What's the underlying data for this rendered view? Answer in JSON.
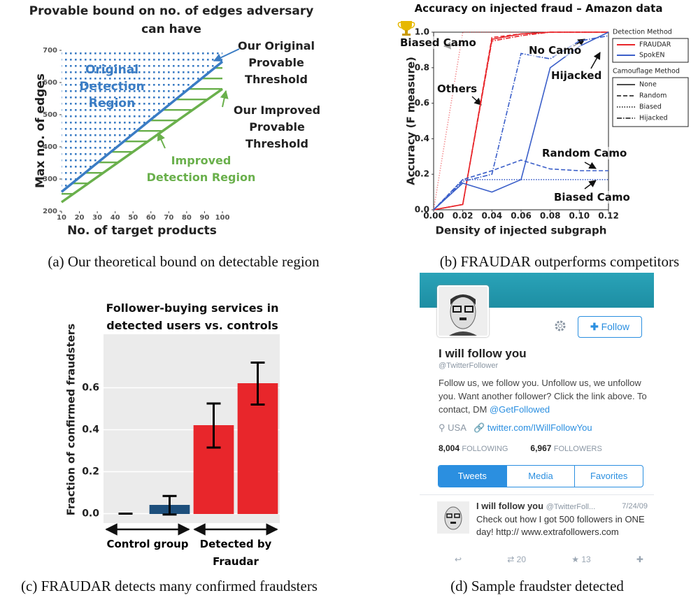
{
  "chart_data": [
    {
      "type": "line",
      "title": "Provable bound on no. of edges adversary can have",
      "xlabel": "No. of target products",
      "ylabel": "Max no. of edges",
      "xlim": [
        10,
        100
      ],
      "ylim": [
        200,
        700
      ],
      "xticks": [
        10,
        20,
        30,
        40,
        50,
        60,
        70,
        80,
        90,
        100
      ],
      "yticks": [
        200,
        300,
        400,
        500,
        600,
        700
      ],
      "x": [
        10,
        100
      ],
      "series": [
        {
          "color": "#3a7cc4",
          "values": [
            260,
            665
          ]
        },
        {
          "color": "#6ab04c",
          "values": [
            228,
            580
          ]
        }
      ],
      "annotations": [
        {
          "text": "Original Detection Region",
          "color": "#3a7cc4"
        },
        {
          "text": "Our Original Provable Threshold",
          "color": "#222222"
        },
        {
          "text": "Our Improved Provable Threshold",
          "color": "#222222"
        },
        {
          "text": "Improved Detection Region",
          "color": "#6ab04c"
        }
      ],
      "grid": false
    },
    {
      "type": "line",
      "title": "Accuracy on injected fraud – Amazon data",
      "xlabel": "Density of injected subgraph",
      "ylabel": "Accuracy (F measure)",
      "xlim": [
        0,
        0.12
      ],
      "ylim": [
        0,
        1.0
      ],
      "xticks": [
        {
          "value": 0,
          "label": "0.00"
        },
        0.02,
        0.04,
        0.06,
        0.08,
        {
          "value": 0.1,
          "label": "0.10"
        },
        0.12
      ],
      "yticks": [
        {
          "value": 0,
          "label": "0.0"
        },
        0.2,
        0.4,
        0.6,
        0.8,
        {
          "value": 1,
          "label": "1.0"
        }
      ],
      "x": [
        0,
        0.02,
        0.04,
        0.06,
        0.08,
        0.1,
        0.12
      ],
      "legend": {
        "methods_title": "Detection Method",
        "methods": [
          {
            "name": "FRAUDAR",
            "color": "#e8262b"
          },
          {
            "name": "SpokEN",
            "color": "#3b5fc9"
          }
        ],
        "camouflages_title": "Camouflage Method",
        "camouflages": [
          {
            "name": "None",
            "dash": "none"
          },
          {
            "name": "Random",
            "dash": "6 3"
          },
          {
            "name": "Biased",
            "dash": "1.5 2"
          },
          {
            "name": "Hijacked",
            "dash": "7 2 1.5 2"
          }
        ]
      },
      "series": [
        {
          "method": "FRAUDAR",
          "camouflage": "None",
          "values": [
            0,
            0.03,
            0.96,
            0.99,
            1,
            1,
            1
          ]
        },
        {
          "method": "FRAUDAR",
          "camouflage": "Random",
          "values": [
            0,
            0.03,
            0.97,
            0.99,
            1,
            1,
            1
          ]
        },
        {
          "method": "FRAUDAR",
          "camouflage": "Biased",
          "values": [
            0,
            1,
            1,
            1,
            1,
            1,
            1
          ]
        },
        {
          "method": "FRAUDAR",
          "camouflage": "Hijacked",
          "values": [
            0,
            0.03,
            0.95,
            0.98,
            1,
            1,
            1
          ]
        },
        {
          "method": "SpokEN",
          "camouflage": "None",
          "values": [
            0,
            0.15,
            0.1,
            0.17,
            0.8,
            0.92,
            1
          ]
        },
        {
          "method": "SpokEN",
          "camouflage": "Random",
          "values": [
            0,
            0.17,
            0.22,
            0.28,
            0.23,
            0.22,
            0.22
          ]
        },
        {
          "method": "SpokEN",
          "camouflage": "Biased",
          "values": [
            0,
            0.17,
            0.17,
            0.17,
            0.17,
            0.17,
            0.17
          ]
        },
        {
          "method": "SpokEN",
          "camouflage": "Hijacked",
          "values": [
            0,
            0.16,
            0.2,
            0.88,
            0.85,
            0.95,
            0.98
          ]
        }
      ],
      "annotations": [
        {
          "text": "Biased Camo",
          "color": "#111111"
        },
        {
          "text": "No Camo",
          "color": "#111111"
        },
        {
          "text": "Others",
          "color": "#111111"
        },
        {
          "text": "Hijacked",
          "color": "#111111"
        },
        {
          "text": "Random Camo",
          "color": "#111111"
        },
        {
          "text": "Biased Camo",
          "color": "#111111"
        }
      ],
      "grid": false
    },
    {
      "type": "bar",
      "title": "Follower-buying services in detected users vs. controls",
      "ylabel": "Fraction of confirmed fraudsters",
      "ylim": [
        -0.045,
        0.855
      ],
      "yticks": [
        {
          "value": 0,
          "label": "0.0"
        },
        0.2,
        0.4,
        0.6
      ],
      "groups": [
        {
          "label": "Control group",
          "color": "#1d4f7c",
          "values": [
            0,
            0.04
          ],
          "errors": [
            0,
            0.044
          ]
        },
        {
          "label": "Detected by Fraudar",
          "color": "#e8262b",
          "values": [
            0.42,
            0.62
          ],
          "errors": [
            0.105,
            0.1
          ]
        }
      ],
      "grid": true
    }
  ],
  "profile": {
    "follow_button": "Follow",
    "name": "I will follow you",
    "handle": "@TwitterFollower",
    "bio": "Follow us, we follow you. Unfollow us, we unfollow you. Want another follower? Click the link above. To contact, DM",
    "bio_mention": "@GetFollowed",
    "location": "USA",
    "link": "twitter.com/IWillFollowYou",
    "following_count": "8,004",
    "following_label": "FOLLOWING",
    "followers_count": "6,967",
    "followers_label": "FOLLOWERS",
    "tabs": [
      "Tweets",
      "Media",
      "Favorites"
    ],
    "tweet": {
      "name": "I will follow you",
      "handle": "@TwitterFoll...",
      "date": "7/24/09",
      "text": "Check out how I got 500 followers in ONE day! http:// www.extrafollowers.com",
      "retweets": "20",
      "favorites": "13"
    }
  },
  "captions": [
    "(a) Our theoretical bound on detectable region",
    "(b) FRAUDAR outperforms competitors",
    "(c) FRAUDAR detects many confirmed fraudsters",
    "(d) Sample fraudster detected"
  ]
}
